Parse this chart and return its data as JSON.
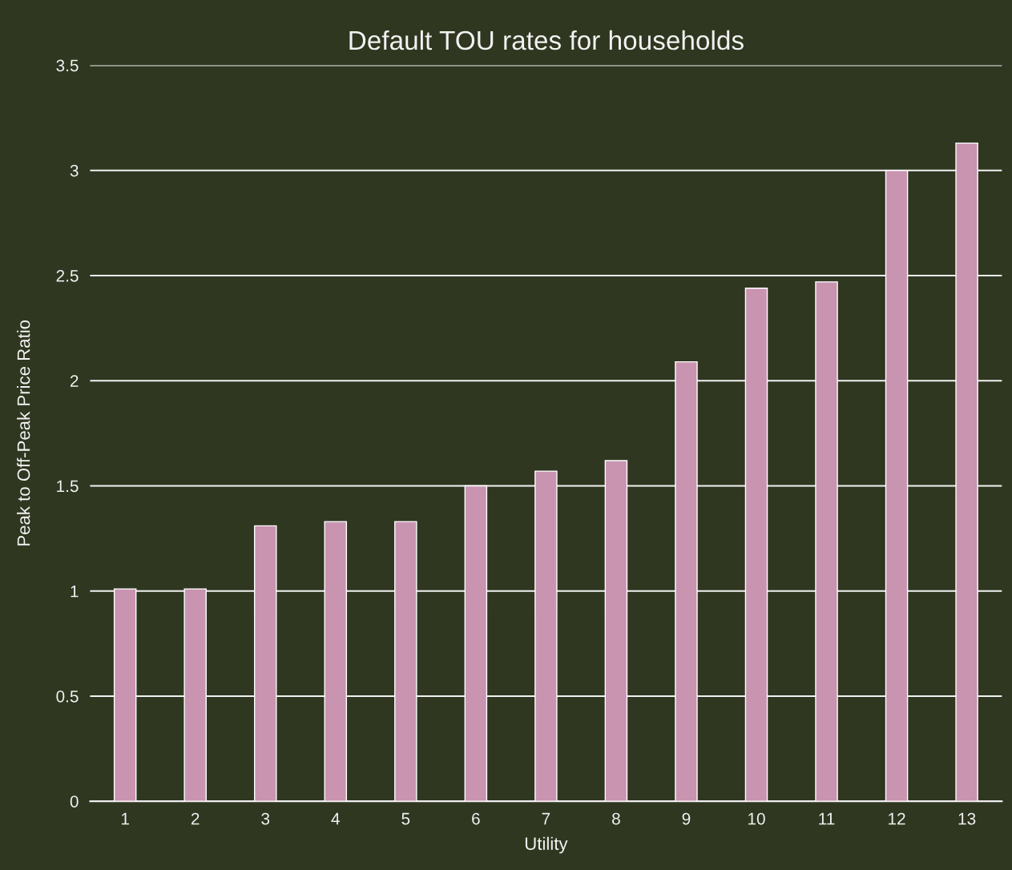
{
  "chart_data": {
    "type": "bar",
    "title": "Default TOU rates for households",
    "xlabel": "Utility",
    "ylabel": "Peak to Off-Peak Price Ratio",
    "categories": [
      "1",
      "2",
      "3",
      "4",
      "5",
      "6",
      "7",
      "8",
      "9",
      "10",
      "11",
      "12",
      "13"
    ],
    "values": [
      1.01,
      1.01,
      1.31,
      1.33,
      1.33,
      1.5,
      1.57,
      1.62,
      2.09,
      2.44,
      2.47,
      3.0,
      3.13
    ],
    "color": "#c894b0",
    "ylim": [
      0,
      3.5
    ],
    "yticks": [
      0,
      0.5,
      1,
      1.5,
      2,
      2.5,
      3,
      3.5
    ],
    "grid": "y",
    "legend": false
  }
}
